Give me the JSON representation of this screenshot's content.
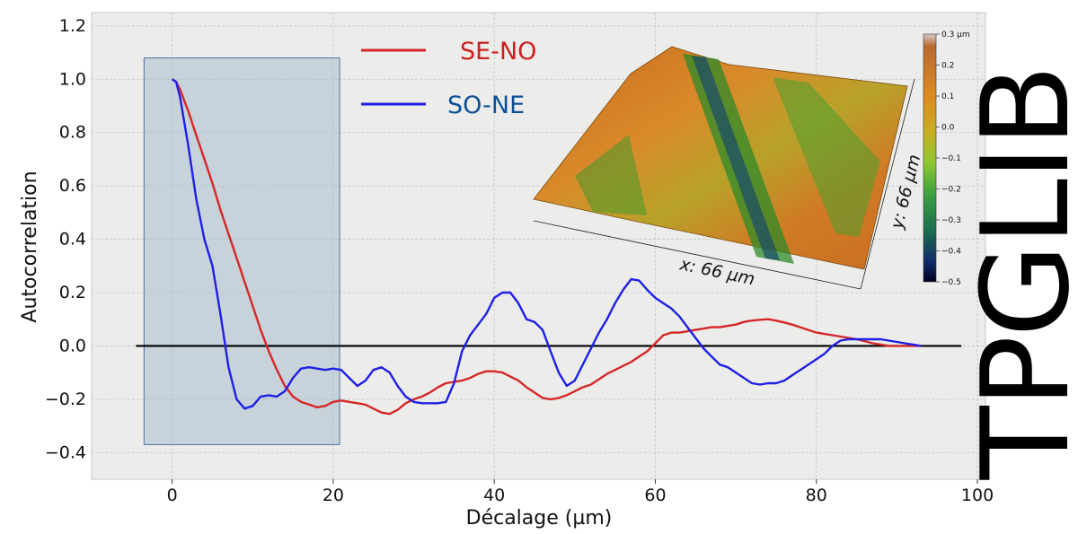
{
  "chart_data": {
    "type": "line",
    "xlabel": "Décalage (µm)",
    "ylabel": "Autocorrelation",
    "xlim": [
      -10,
      101
    ],
    "ylim": [
      -0.5,
      1.25
    ],
    "xticks": [
      0,
      20,
      40,
      60,
      80,
      100
    ],
    "yticks": [
      -0.4,
      -0.2,
      0.0,
      0.2,
      0.4,
      0.6,
      0.8,
      1.0,
      1.2
    ],
    "xtick_labels": [
      "0",
      "20",
      "40",
      "60",
      "80",
      "100"
    ],
    "ytick_labels": [
      "−0.4",
      "−0.2",
      "0.0",
      "0.2",
      "0.4",
      "0.6",
      "0.8",
      "1.0",
      "1.2"
    ],
    "grid": true,
    "legend_position": "top-center",
    "shaded_region": {
      "x": [
        -3.5,
        20.8
      ],
      "y": [
        -0.37,
        1.08
      ],
      "color": "#aabccd"
    },
    "zero_line": {
      "x": [
        -4.5,
        98
      ],
      "y": 0.0,
      "color": "#000000"
    },
    "series": [
      {
        "name": "SE-NO",
        "color": "#d62728",
        "x": [
          0,
          0.5,
          1,
          2,
          3,
          4,
          5,
          6,
          7,
          8,
          9,
          10,
          11,
          12,
          13,
          14,
          15,
          16,
          17,
          18,
          19,
          20,
          21,
          22,
          23,
          24,
          25,
          26,
          27,
          28,
          29,
          30,
          31,
          32,
          33,
          34,
          35,
          36,
          37,
          38,
          39,
          40,
          41,
          42,
          43,
          44,
          45,
          46,
          47,
          48,
          49,
          50,
          51,
          52,
          53,
          54,
          55,
          56,
          57,
          58,
          59,
          60,
          61,
          62,
          63,
          64,
          65,
          66,
          67,
          68,
          69,
          70,
          71,
          72,
          73,
          74,
          75,
          76,
          77,
          78,
          79,
          80,
          81,
          82,
          83,
          84,
          85,
          86,
          87,
          88,
          89,
          90,
          91,
          92,
          93
        ],
        "y": [
          1.0,
          0.99,
          0.96,
          0.88,
          0.79,
          0.7,
          0.61,
          0.51,
          0.42,
          0.33,
          0.24,
          0.15,
          0.06,
          -0.02,
          -0.09,
          -0.15,
          -0.19,
          -0.21,
          -0.22,
          -0.23,
          -0.225,
          -0.21,
          -0.205,
          -0.21,
          -0.215,
          -0.22,
          -0.235,
          -0.25,
          -0.255,
          -0.24,
          -0.215,
          -0.2,
          -0.19,
          -0.175,
          -0.155,
          -0.14,
          -0.135,
          -0.13,
          -0.12,
          -0.105,
          -0.095,
          -0.095,
          -0.1,
          -0.115,
          -0.13,
          -0.155,
          -0.175,
          -0.195,
          -0.2,
          -0.195,
          -0.185,
          -0.17,
          -0.155,
          -0.145,
          -0.125,
          -0.105,
          -0.09,
          -0.075,
          -0.06,
          -0.04,
          -0.02,
          0.01,
          0.04,
          0.05,
          0.05,
          0.055,
          0.06,
          0.065,
          0.07,
          0.07,
          0.075,
          0.08,
          0.09,
          0.095,
          0.098,
          0.1,
          0.095,
          0.088,
          0.08,
          0.07,
          0.06,
          0.05,
          0.045,
          0.04,
          0.035,
          0.03,
          0.025,
          0.018,
          0.01,
          0.005,
          0.0,
          0.0,
          0.0,
          0.0,
          0.0
        ]
      },
      {
        "name": "SO-NE",
        "color": "#1f1fe6",
        "x": [
          0,
          0.5,
          1,
          2,
          3,
          4,
          5,
          6,
          7,
          8,
          9,
          10,
          11,
          12,
          13,
          14,
          15,
          16,
          17,
          18,
          19,
          20,
          21,
          22,
          23,
          24,
          25,
          26,
          27,
          28,
          29,
          30,
          31,
          32,
          33,
          34,
          35,
          36,
          37,
          38,
          39,
          40,
          41,
          42,
          43,
          44,
          45,
          46,
          47,
          48,
          49,
          50,
          51,
          52,
          53,
          54,
          55,
          56,
          57,
          58,
          59,
          60,
          61,
          62,
          63,
          64,
          65,
          66,
          67,
          68,
          69,
          70,
          71,
          72,
          73,
          74,
          75,
          76,
          77,
          78,
          79,
          80,
          81,
          82,
          83,
          84,
          85,
          86,
          87,
          88,
          89,
          90,
          91,
          92,
          93
        ],
        "y": [
          1.0,
          0.99,
          0.93,
          0.75,
          0.55,
          0.4,
          0.3,
          0.12,
          -0.08,
          -0.2,
          -0.235,
          -0.225,
          -0.19,
          -0.185,
          -0.19,
          -0.17,
          -0.12,
          -0.085,
          -0.08,
          -0.085,
          -0.09,
          -0.085,
          -0.09,
          -0.12,
          -0.15,
          -0.13,
          -0.09,
          -0.08,
          -0.1,
          -0.15,
          -0.19,
          -0.21,
          -0.215,
          -0.215,
          -0.215,
          -0.21,
          -0.14,
          -0.02,
          0.04,
          0.08,
          0.12,
          0.18,
          0.2,
          0.2,
          0.16,
          0.1,
          0.09,
          0.06,
          -0.02,
          -0.1,
          -0.15,
          -0.13,
          -0.07,
          -0.01,
          0.05,
          0.1,
          0.16,
          0.21,
          0.25,
          0.245,
          0.21,
          0.18,
          0.16,
          0.14,
          0.11,
          0.07,
          0.03,
          -0.01,
          -0.04,
          -0.07,
          -0.08,
          -0.1,
          -0.12,
          -0.14,
          -0.145,
          -0.14,
          -0.14,
          -0.13,
          -0.11,
          -0.09,
          -0.07,
          -0.05,
          -0.03,
          0.0,
          0.02,
          0.025,
          0.025,
          0.025,
          0.025,
          0.025,
          0.02,
          0.015,
          0.01,
          0.005,
          0.0
        ]
      }
    ]
  },
  "inset": {
    "x_label": "x: 66 µm",
    "y_label": "y: 66 µm",
    "colorbar": {
      "labels": [
        "0.3 µm",
        "0.2",
        "0.1",
        "0.0",
        "−0.1",
        "−0.2",
        "−0.3",
        "−0.4",
        "−0.5"
      ],
      "values": [
        0.3,
        0.2,
        0.1,
        0.0,
        -0.1,
        -0.2,
        -0.3,
        -0.4,
        -0.5
      ]
    }
  },
  "watermark": {
    "text": "TPGLIB"
  }
}
